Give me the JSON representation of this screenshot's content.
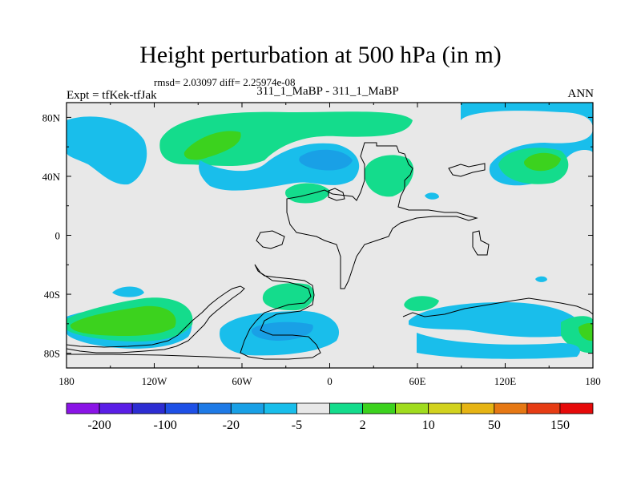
{
  "header": {
    "title": "Height perturbation at 500 hPa (in m)",
    "stats": "rmsd= 2.03097 diff= 2.25974e-08",
    "left_label": "Expt = tfKek-tfJak",
    "center_label": "311_1_MaBP - 311_1_MaBP",
    "right_label": "ANN"
  },
  "chart_data": {
    "type": "heatmap",
    "title": "Height perturbation at 500 hPa (in m)",
    "xlabel": "",
    "ylabel": "",
    "xlim": [
      -180,
      180
    ],
    "ylim": [
      -90,
      90
    ],
    "x_tick_values": [
      -180,
      -120,
      -60,
      0,
      60,
      120,
      180
    ],
    "x_tick_labels": [
      "180",
      "120W",
      "60W",
      "0",
      "60E",
      "120E",
      "180"
    ],
    "y_tick_values": [
      80,
      40,
      0,
      -40,
      -80
    ],
    "y_tick_labels": [
      "80N",
      "40N",
      "0",
      "40S",
      "80S"
    ],
    "colorbar": {
      "colors": [
        "#8a14e6",
        "#5a1ee6",
        "#2d2dd2",
        "#1e50e6",
        "#1e7ae6",
        "#19a0e6",
        "#19beeb",
        "#e8e8e8",
        "#14dc8c",
        "#3cd21e",
        "#a0dc1e",
        "#d2d21e",
        "#e6b414",
        "#e67814",
        "#e63c14",
        "#e60a0a"
      ],
      "labels": [
        "-200",
        "-100",
        "-20",
        "-5",
        "2",
        "10",
        "50",
        "150"
      ],
      "background_color": "#e8e8e8"
    },
    "anomaly_regions": [
      {
        "sign": "negative",
        "lon": -165,
        "lat": 68,
        "peak": "-5 to -2"
      },
      {
        "sign": "positive",
        "lon": -85,
        "lat": 70,
        "peak": "2 to 10"
      },
      {
        "sign": "negative",
        "lon": 0,
        "lat": 52,
        "peak": "-20 to -5"
      },
      {
        "sign": "positive",
        "lon": 40,
        "lat": 48,
        "peak": "2 to 5"
      },
      {
        "sign": "positive",
        "lon": -25,
        "lat": 30,
        "peak": "2 to 5"
      },
      {
        "sign": "positive",
        "lon": 145,
        "lat": 52,
        "peak": "2 to 10"
      },
      {
        "sign": "negative",
        "lon": 135,
        "lat": 70,
        "peak": "-5 to -2"
      },
      {
        "sign": "positive",
        "lon": -145,
        "lat": -58,
        "peak": "2 to 10"
      },
      {
        "sign": "negative",
        "lon": -45,
        "lat": -65,
        "peak": "-20 to -5"
      },
      {
        "sign": "positive",
        "lon": -25,
        "lat": -38,
        "peak": "2 to 5"
      },
      {
        "sign": "negative",
        "lon": 110,
        "lat": -58,
        "peak": "-5 to -2"
      },
      {
        "sign": "positive",
        "lon": 60,
        "lat": -45,
        "peak": "2 to 5"
      },
      {
        "sign": "positive",
        "lon": 175,
        "lat": -62,
        "peak": "2 to 10"
      }
    ]
  }
}
